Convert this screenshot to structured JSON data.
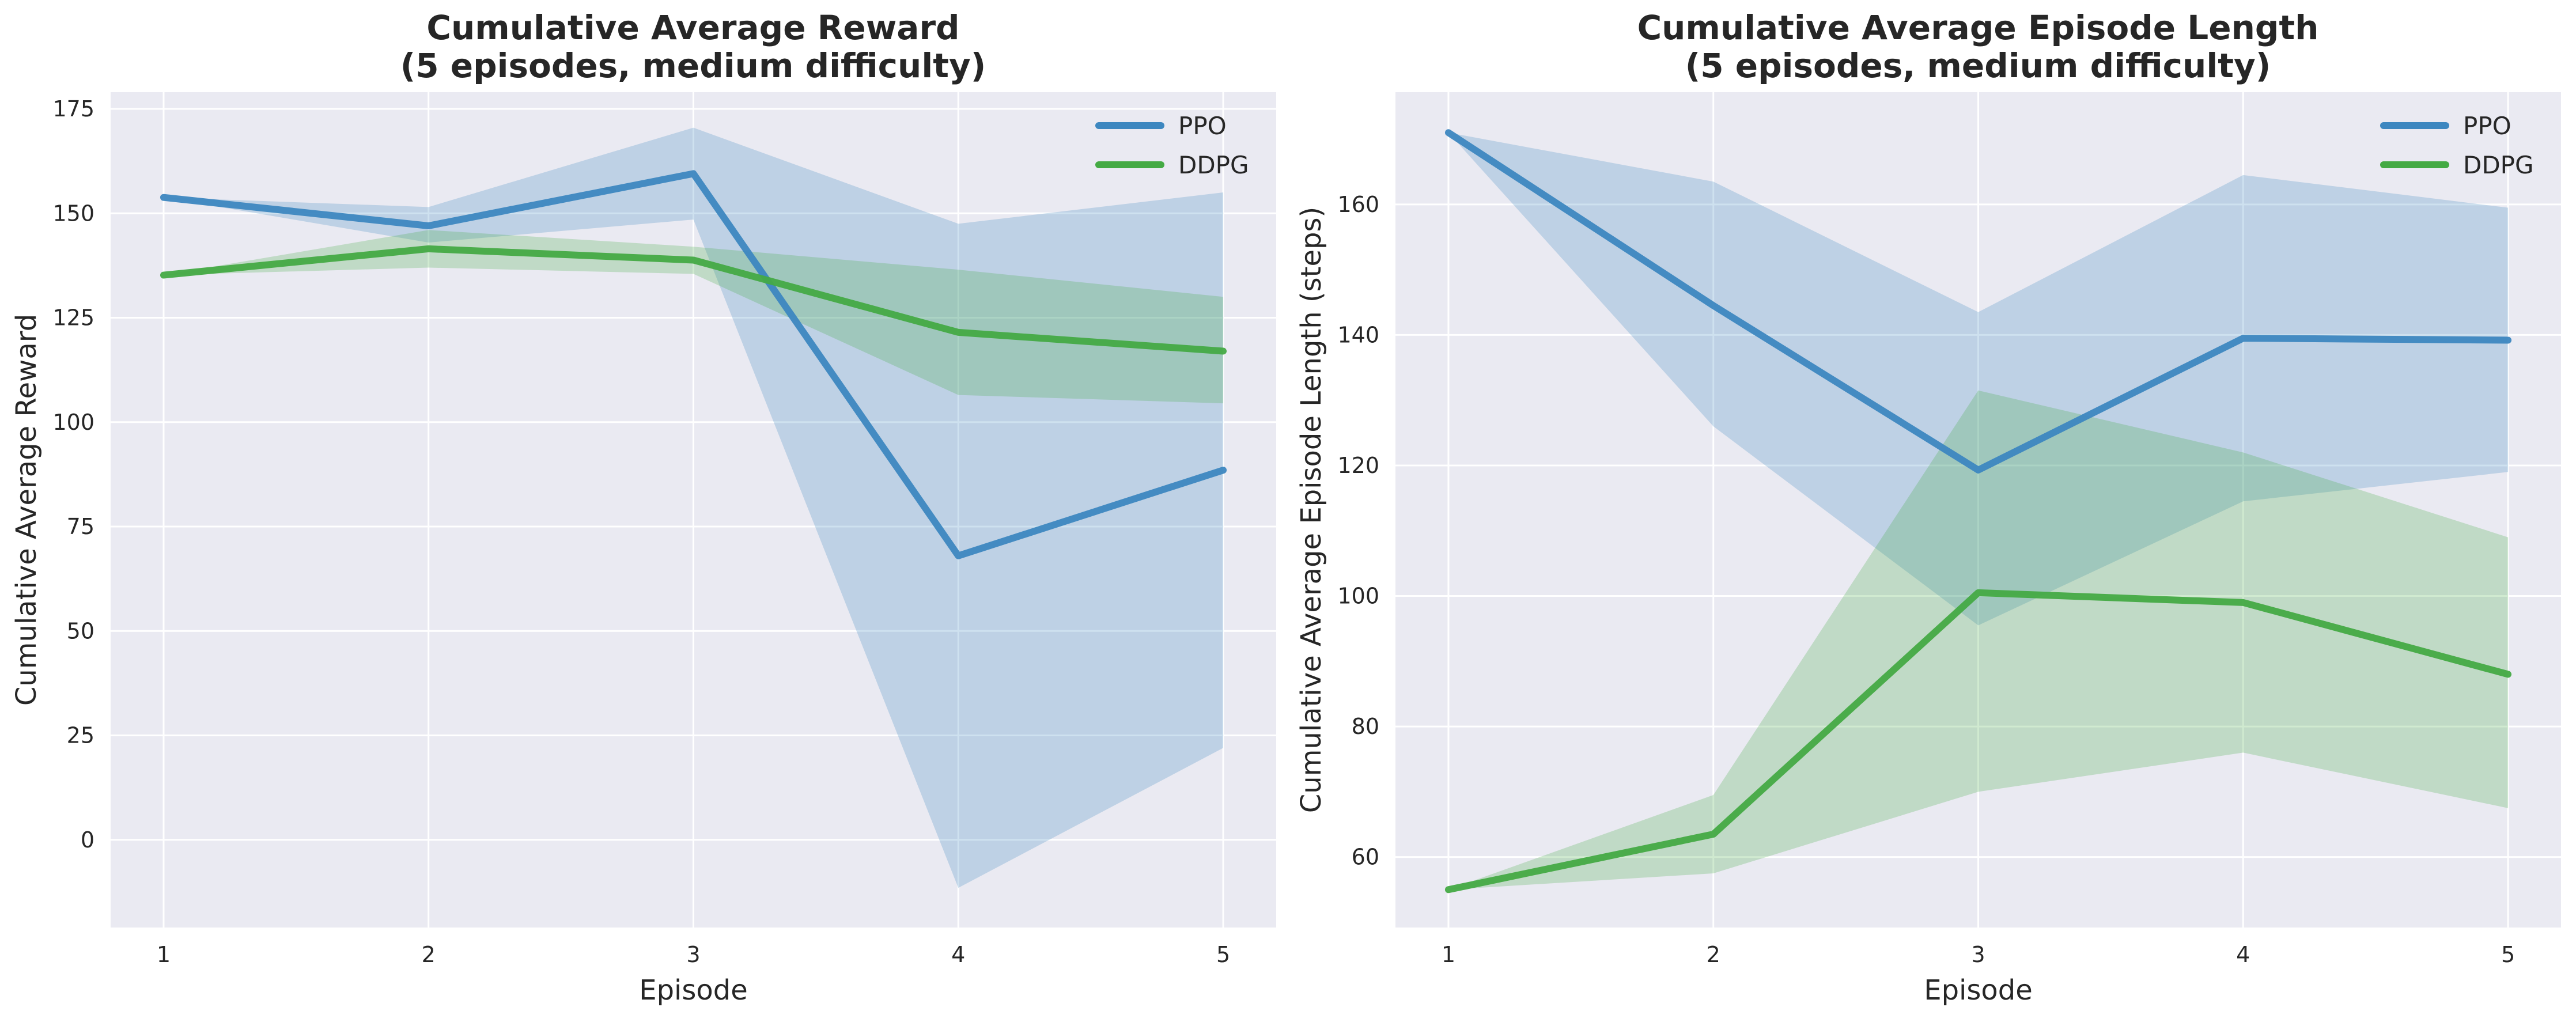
{
  "chart_data": [
    {
      "type": "line",
      "title": [
        "Cumulative Average Reward",
        "(5 episodes, medium difficulty)"
      ],
      "xlabel": "Episode",
      "ylabel": "Cumulative Average Reward",
      "x": [
        1,
        2,
        3,
        4,
        5
      ],
      "xticks": [
        1,
        2,
        3,
        4,
        5
      ],
      "xlim": [
        0.8,
        5.2
      ],
      "ylim": [
        -21,
        179
      ],
      "yticks": [
        0,
        25,
        50,
        75,
        100,
        125,
        150,
        175
      ],
      "grid": true,
      "legend_position": "upper right",
      "series": [
        {
          "name": "PPO",
          "color": "#3d87c0",
          "band_color": "#3d87c0",
          "values": [
            153.8,
            147.0,
            159.5,
            68.0,
            88.5
          ],
          "band_low": [
            153.8,
            143.0,
            148.5,
            -11.5,
            22.0
          ],
          "band_high": [
            153.8,
            151.5,
            170.5,
            147.5,
            155.0
          ]
        },
        {
          "name": "DDPG",
          "color": "#44aa44",
          "band_color": "#44aa44",
          "values": [
            135.2,
            141.5,
            138.8,
            121.5,
            117.0
          ],
          "band_low": [
            135.2,
            137.0,
            135.5,
            106.5,
            104.5
          ],
          "band_high": [
            135.2,
            146.0,
            142.0,
            136.5,
            130.0
          ]
        }
      ]
    },
    {
      "type": "line",
      "title": [
        "Cumulative Average Episode Length",
        "(5 episodes, medium difficulty)"
      ],
      "xlabel": "Episode",
      "ylabel": "Cumulative Average Episode Length (steps)",
      "x": [
        1,
        2,
        3,
        4,
        5
      ],
      "xticks": [
        1,
        2,
        3,
        4,
        5
      ],
      "xlim": [
        0.8,
        5.2
      ],
      "ylim": [
        49.2,
        177.2
      ],
      "yticks": [
        60,
        80,
        100,
        120,
        140,
        160
      ],
      "grid": true,
      "legend_position": "upper right",
      "series": [
        {
          "name": "PPO",
          "color": "#3d87c0",
          "band_color": "#3d87c0",
          "values": [
            171.0,
            144.5,
            119.3,
            139.5,
            139.2
          ],
          "band_low": [
            171.0,
            126.0,
            95.5,
            114.5,
            119.0
          ],
          "band_high": [
            171.0,
            163.5,
            143.5,
            164.5,
            159.5
          ]
        },
        {
          "name": "DDPG",
          "color": "#44aa44",
          "band_color": "#44aa44",
          "values": [
            55.0,
            63.5,
            100.5,
            99.0,
            88.0
          ],
          "band_low": [
            55.0,
            57.5,
            70.0,
            76.0,
            67.5
          ],
          "band_high": [
            55.0,
            69.5,
            131.5,
            122.0,
            109.0
          ]
        }
      ]
    }
  ]
}
